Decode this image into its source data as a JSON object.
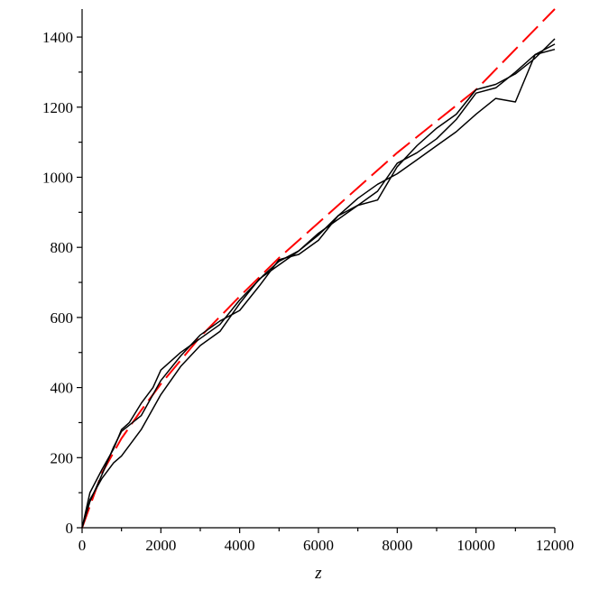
{
  "chart_data": {
    "type": "line",
    "title": "",
    "xlabel": "z",
    "ylabel": "",
    "xlim": [
      0,
      12000
    ],
    "ylim": [
      0,
      1480
    ],
    "x_ticks": [
      0,
      2000,
      4000,
      6000,
      8000,
      10000,
      12000
    ],
    "y_ticks": [
      0,
      200,
      400,
      600,
      800,
      1000,
      1200,
      1400
    ],
    "grid": false,
    "legend": "none",
    "series": [
      {
        "color": "#ff0000",
        "style": "dashed",
        "x": [
          0,
          500,
          1000,
          1500,
          2000,
          3000,
          4000,
          5000,
          6000,
          7000,
          8000,
          9000,
          10000,
          11000,
          12000
        ],
        "y": [
          0,
          155,
          255,
          335,
          410,
          545,
          660,
          770,
          870,
          970,
          1070,
          1160,
          1250,
          1365,
          1480
        ]
      },
      {
        "color": "#000000",
        "style": "solid",
        "x": [
          0,
          200,
          500,
          800,
          1000,
          1200,
          1500,
          1800,
          2000,
          2500,
          3000,
          3500,
          4000,
          4300,
          4600,
          5000,
          5500,
          6000,
          6500,
          7000,
          7500,
          8000,
          8500,
          9000,
          9500,
          10000,
          10500,
          11000,
          11500,
          12000
        ],
        "y": [
          0,
          100,
          165,
          225,
          280,
          300,
          355,
          400,
          450,
          500,
          540,
          580,
          650,
          685,
          720,
          760,
          790,
          835,
          890,
          920,
          935,
          1030,
          1090,
          1140,
          1180,
          1250,
          1265,
          1295,
          1340,
          1395
        ]
      },
      {
        "color": "#000000",
        "style": "solid",
        "x": [
          0,
          200,
          500,
          800,
          1000,
          1500,
          2000,
          2500,
          3000,
          3500,
          4000,
          4500,
          5000,
          5500,
          6000,
          6500,
          7000,
          7500,
          8000,
          8500,
          9000,
          9500,
          10000,
          10500,
          11000,
          11500,
          12000
        ],
        "y": [
          0,
          80,
          140,
          185,
          205,
          280,
          380,
          460,
          520,
          560,
          640,
          710,
          750,
          790,
          840,
          880,
          920,
          960,
          1040,
          1070,
          1110,
          1165,
          1240,
          1255,
          1300,
          1350,
          1365
        ]
      },
      {
        "color": "#000000",
        "style": "solid",
        "x": [
          0,
          200,
          500,
          800,
          1000,
          1500,
          2000,
          2500,
          3000,
          3500,
          4000,
          4500,
          5000,
          5500,
          6000,
          6500,
          7000,
          7500,
          8000,
          8500,
          9000,
          9500,
          10000,
          10500,
          11000,
          11500,
          12000
        ],
        "y": [
          0,
          75,
          150,
          230,
          275,
          320,
          420,
          490,
          550,
          590,
          620,
          690,
          765,
          780,
          820,
          890,
          940,
          980,
          1010,
          1050,
          1090,
          1130,
          1180,
          1225,
          1215,
          1350,
          1380
        ]
      }
    ]
  }
}
